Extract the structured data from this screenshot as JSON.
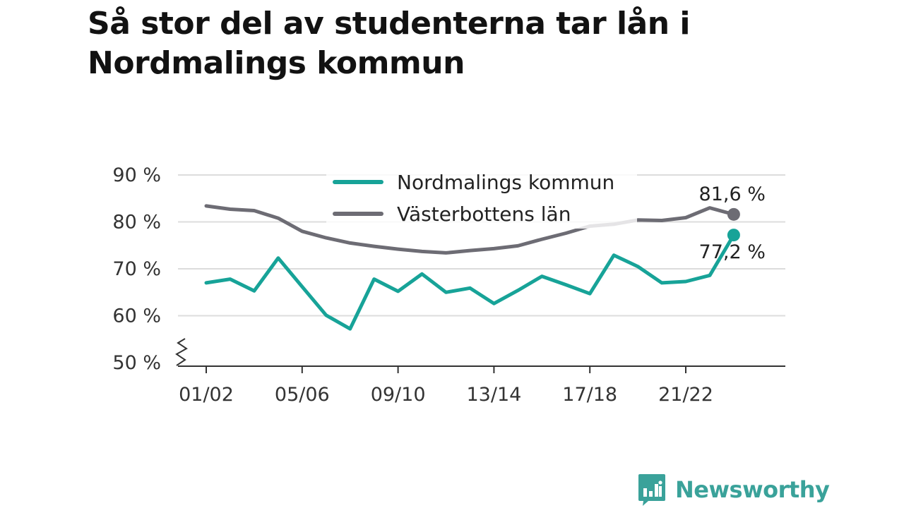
{
  "title": "Så stor del av studenterna tar lån i Nordmalings kommun",
  "brand": {
    "name": "Newsworthy",
    "icon": "newsworthy-logo-icon",
    "color": "#3aa29a"
  },
  "chart_data": {
    "type": "line",
    "title": "Så stor del av studenterna tar lån i Nordmalings kommun",
    "xlabel": "",
    "ylabel": "",
    "ylim": [
      50,
      90
    ],
    "y_ticks": [
      50,
      60,
      70,
      80,
      90
    ],
    "y_tick_labels": [
      "50 %",
      "60 %",
      "70 %",
      "80 %",
      "90 %"
    ],
    "y_axis_break": true,
    "grid": true,
    "legend_position": "top-center",
    "categories": [
      "01/02",
      "02/03",
      "03/04",
      "04/05",
      "05/06",
      "06/07",
      "07/08",
      "08/09",
      "09/10",
      "10/11",
      "11/12",
      "12/13",
      "13/14",
      "14/15",
      "15/16",
      "16/17",
      "17/18",
      "18/19",
      "19/20",
      "20/21",
      "21/22",
      "22/23",
      "23/24"
    ],
    "x_tick_labels": [
      "01/02",
      "05/06",
      "09/10",
      "13/14",
      "17/18",
      "21/22"
    ],
    "series": [
      {
        "name": "Nordmalings kommun",
        "color": "#17a398",
        "values": [
          67.0,
          67.8,
          65.3,
          72.3,
          66.2,
          60.1,
          57.2,
          67.8,
          65.2,
          68.9,
          65.0,
          65.9,
          62.6,
          65.4,
          68.4,
          66.6,
          64.7,
          72.9,
          70.5,
          67.0,
          67.3,
          68.6,
          77.2
        ],
        "end_label": "77,2 %"
      },
      {
        "name": "Västerbottens län",
        "color": "#6d6c74",
        "values": [
          83.4,
          82.7,
          82.4,
          80.8,
          78.0,
          76.6,
          75.5,
          74.8,
          74.2,
          73.7,
          73.4,
          73.9,
          74.3,
          74.9,
          76.3,
          77.6,
          79.1,
          79.5,
          80.4,
          80.3,
          80.9,
          83.0,
          81.6
        ],
        "end_label": "81,6 %"
      }
    ]
  }
}
